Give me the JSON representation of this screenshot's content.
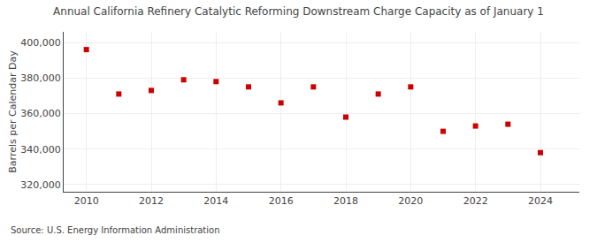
{
  "chart_data": {
    "type": "scatter",
    "title": "Annual California Refinery Catalytic Reforming Downstream Charge Capacity as of January 1",
    "ylabel": "Barrels per Calendar Day",
    "annotations": [
      "Source: U.S. Energy Information Administration"
    ],
    "x": [
      2010,
      2011,
      2012,
      2013,
      2014,
      2015,
      2016,
      2017,
      2018,
      2019,
      2020,
      2021,
      2022,
      2023,
      2024
    ],
    "values": [
      396000,
      371000,
      373000,
      379000,
      378000,
      375000,
      366000,
      375000,
      358000,
      371000,
      375000,
      350000,
      353000,
      354000,
      338000
    ],
    "color": "#cc0000",
    "marker": "square",
    "xlim": [
      2009.3,
      2025.2
    ],
    "xticks": [
      2010,
      2012,
      2014,
      2016,
      2018,
      2020,
      2022,
      2024
    ],
    "ylim": [
      316000,
      406000
    ],
    "yticks": [
      {
        "value": 320000,
        "label": "320,000"
      },
      {
        "value": 340000,
        "label": "340,000"
      },
      {
        "value": 360000,
        "label": "360,000"
      },
      {
        "value": 380000,
        "label": "380,000"
      },
      {
        "value": 400000,
        "label": "400,000"
      }
    ],
    "grid": true
  }
}
